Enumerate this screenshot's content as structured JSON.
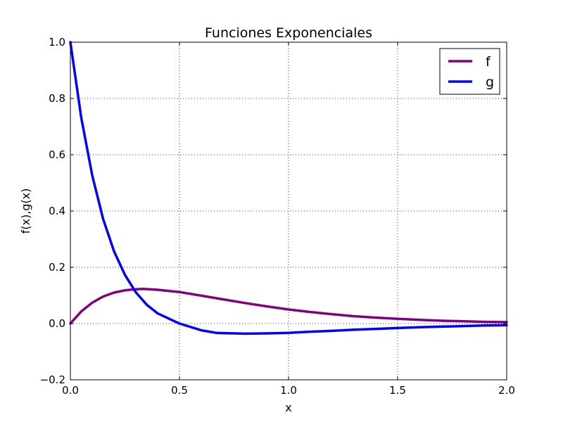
{
  "chart_data": {
    "type": "line",
    "title": "Funciones Exponenciales",
    "xlabel": "x",
    "ylabel": "f(x),g(x)",
    "xlim": [
      0.0,
      2.0
    ],
    "ylim": [
      -0.2,
      1.0
    ],
    "xticks": [
      0.0,
      0.5,
      1.0,
      1.5,
      2.0
    ],
    "xtick_labels": [
      "0.0",
      "0.5",
      "1.0",
      "1.5",
      "2.0"
    ],
    "yticks": [
      -0.2,
      0.0,
      0.2,
      0.4,
      0.6,
      0.8,
      1.0
    ],
    "ytick_labels": [
      "−0.2",
      "0.0",
      "0.2",
      "0.4",
      "0.6",
      "0.8",
      "1.0"
    ],
    "grid": true,
    "legend_position": "top-right",
    "series": [
      {
        "name": "f",
        "color": "#800080",
        "x": [
          0.0,
          0.05,
          0.1,
          0.15,
          0.2,
          0.25,
          0.3,
          0.333,
          0.4,
          0.5,
          0.6,
          0.7,
          0.8,
          0.9,
          1.0,
          1.1,
          1.2,
          1.3,
          1.4,
          1.5,
          1.6,
          1.7,
          1.8,
          1.9,
          2.0
        ],
        "y": [
          0.0,
          0.043,
          0.074,
          0.096,
          0.11,
          0.118,
          0.122,
          0.123,
          0.12,
          0.112,
          0.099,
          0.086,
          0.073,
          0.061,
          0.05,
          0.041,
          0.033,
          0.026,
          0.021,
          0.017,
          0.013,
          0.01,
          0.008,
          0.006,
          0.005
        ]
      },
      {
        "name": "g",
        "color": "#0000ff",
        "x": [
          0.0,
          0.05,
          0.1,
          0.15,
          0.2,
          0.25,
          0.3,
          0.35,
          0.4,
          0.5,
          0.6,
          0.667,
          0.7,
          0.8,
          0.9,
          1.0,
          1.1,
          1.2,
          1.3,
          1.4,
          1.5,
          1.6,
          1.7,
          1.8,
          1.9,
          2.0
        ],
        "y": [
          1.0,
          0.731,
          0.527,
          0.372,
          0.257,
          0.173,
          0.111,
          0.067,
          0.036,
          0.0,
          -0.024,
          -0.033,
          -0.034,
          -0.036,
          -0.035,
          -0.033,
          -0.029,
          -0.026,
          -0.022,
          -0.019,
          -0.016,
          -0.013,
          -0.011,
          -0.009,
          -0.007,
          -0.006
        ]
      }
    ]
  }
}
